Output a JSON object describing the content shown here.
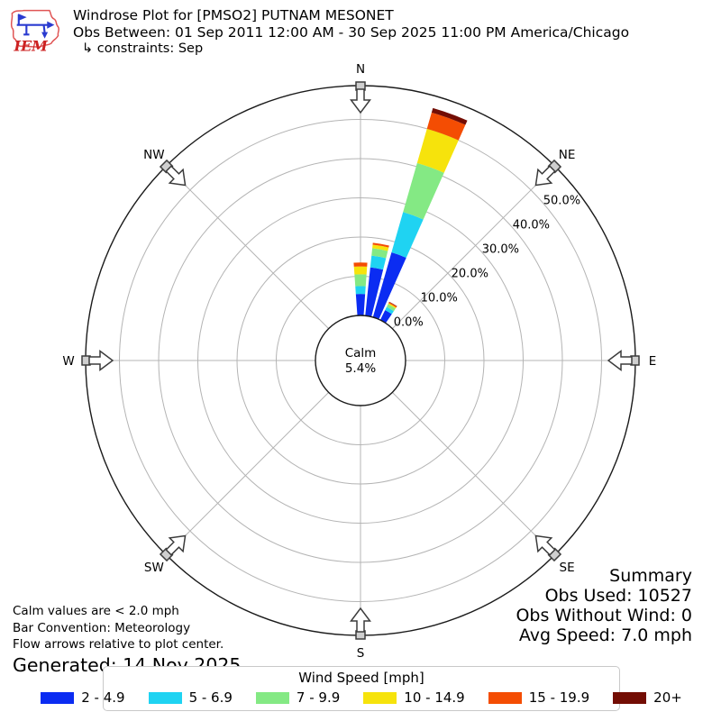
{
  "header": {
    "title": "Windrose Plot for [PMSO2] PUTNAM MESONET",
    "subtitle": "Obs Between: 01 Sep 2011 12:00 AM - 30 Sep 2025 11:00 PM America/Chicago",
    "constraints": "↳ constraints: Sep",
    "logo_text": "IEM"
  },
  "rose": {
    "calm_label": "Calm",
    "calm_value": "5.4%",
    "ticks": [
      {
        "label": "0.0%",
        "pct": 0
      },
      {
        "label": "10.0%",
        "pct": 10
      },
      {
        "label": "20.0%",
        "pct": 20
      },
      {
        "label": "30.0%",
        "pct": 30
      },
      {
        "label": "40.0%",
        "pct": 40
      },
      {
        "label": "50.0%",
        "pct": 50
      }
    ],
    "compass": [
      {
        "label": "N",
        "bearing": 0
      },
      {
        "label": "NE",
        "bearing": 45
      },
      {
        "label": "E",
        "bearing": 90
      },
      {
        "label": "SE",
        "bearing": 135
      },
      {
        "label": "S",
        "bearing": 180
      },
      {
        "label": "SW",
        "bearing": 225
      },
      {
        "label": "W",
        "bearing": 270
      },
      {
        "label": "NW",
        "bearing": 315
      }
    ]
  },
  "chart_data": {
    "type": "windrose",
    "title": "Windrose Plot for [PMSO2] PUTNAM MESONET",
    "units": "percent frequency, wind blowing from direction",
    "calm_percent": 5.4,
    "rings_percent": [
      10,
      20,
      30,
      40,
      50
    ],
    "ring_label_max": 50,
    "speed_bins_mph": [
      "2 - 4.9",
      "5 - 6.9",
      "7 - 9.9",
      "10 - 14.9",
      "15 - 19.9",
      "20+"
    ],
    "bin_colors": [
      "#0b2cf2",
      "#1fd3f2",
      "#84e984",
      "#f6e30c",
      "#f44d03",
      "#730d04"
    ],
    "bar_width_deg": 8,
    "bars": [
      {
        "bearing_deg": 0,
        "values_pct": [
          5.5,
          2.0,
          3.0,
          2.0,
          1.0,
          0
        ],
        "total_pct": 13.5
      },
      {
        "bearing_deg": 10,
        "values_pct": [
          12.4,
          3.0,
          1.9,
          0.9,
          0.5,
          0
        ],
        "total_pct": 18.7
      },
      {
        "bearing_deg": 20,
        "values_pct": [
          17.2,
          10.7,
          13.0,
          9.1,
          4.3,
          1.2
        ],
        "total_pct": 55.5
      },
      {
        "bearing_deg": 30,
        "values_pct": [
          2.8,
          0.9,
          0.8,
          0.3,
          0.3,
          0.1
        ],
        "total_pct": 5.2
      }
    ]
  },
  "summary": {
    "title": "Summary",
    "obs_used": "Obs Used: 10527",
    "obs_without_wind": "Obs Without Wind: 0",
    "avg_speed": "Avg Speed: 7.0 mph"
  },
  "footnotes": {
    "calm": "Calm values are < 2.0 mph",
    "convention": "Bar Convention: Meteorology",
    "arrows": "Flow arrows relative to plot center.",
    "generated": "Generated: 14 Nov 2025"
  },
  "legend": {
    "title": "Wind Speed [mph]",
    "items": [
      {
        "label": "2 - 4.9",
        "color": "#0b2cf2"
      },
      {
        "label": "5 - 6.9",
        "color": "#1fd3f2"
      },
      {
        "label": "7 - 9.9",
        "color": "#84e984"
      },
      {
        "label": "10 - 14.9",
        "color": "#f6e30c"
      },
      {
        "label": "15 - 19.9",
        "color": "#f44d03"
      },
      {
        "label": "20+",
        "color": "#730d04"
      }
    ]
  }
}
